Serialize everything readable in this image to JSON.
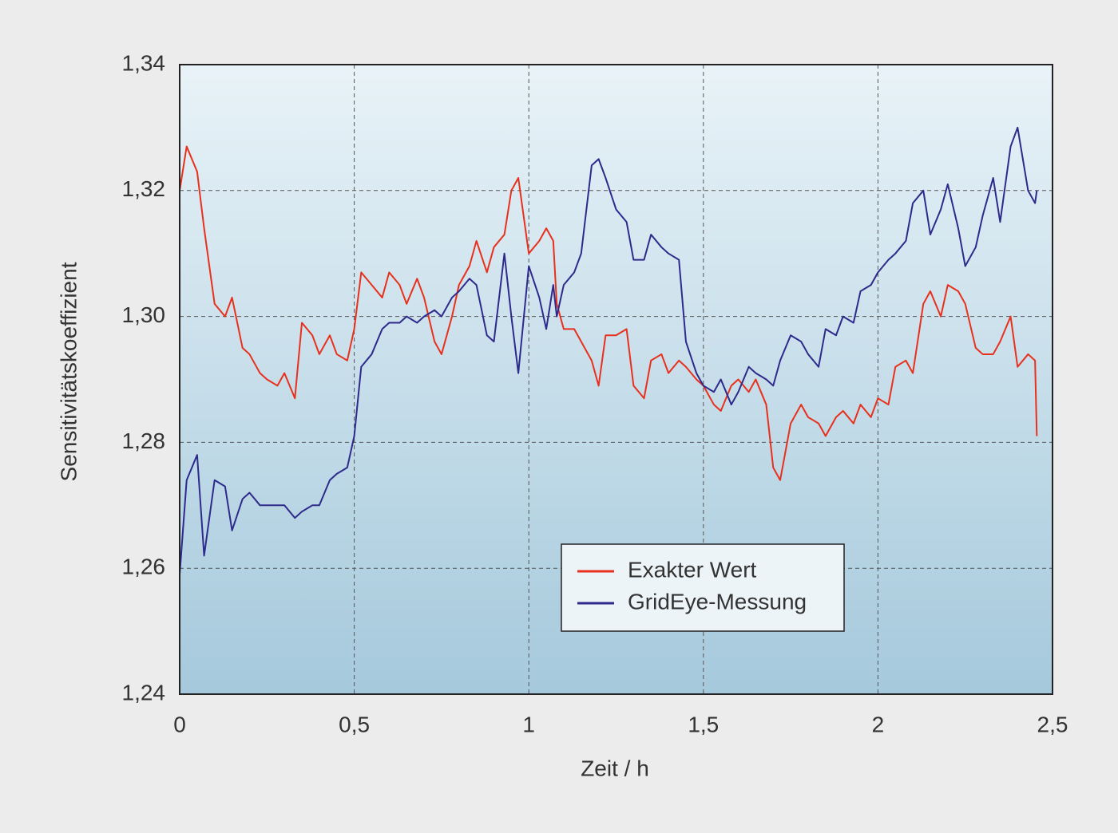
{
  "chart_data": {
    "type": "line",
    "xlabel": "Zeit / h",
    "ylabel": "Sensitivitätskoeffizient",
    "x": [
      0,
      0.02,
      0.05,
      0.07,
      0.1,
      0.13,
      0.15,
      0.18,
      0.2,
      0.23,
      0.25,
      0.28,
      0.3,
      0.33,
      0.35,
      0.38,
      0.4,
      0.43,
      0.45,
      0.48,
      0.5,
      0.52,
      0.55,
      0.58,
      0.6,
      0.63,
      0.65,
      0.68,
      0.7,
      0.73,
      0.75,
      0.78,
      0.8,
      0.83,
      0.85,
      0.88,
      0.9,
      0.93,
      0.95,
      0.97,
      1.0,
      1.03,
      1.05,
      1.07,
      1.08,
      1.1,
      1.13,
      1.15,
      1.18,
      1.2,
      1.22,
      1.25,
      1.28,
      1.3,
      1.33,
      1.35,
      1.38,
      1.4,
      1.43,
      1.45,
      1.48,
      1.5,
      1.53,
      1.55,
      1.58,
      1.6,
      1.63,
      1.65,
      1.68,
      1.7,
      1.72,
      1.75,
      1.78,
      1.8,
      1.83,
      1.85,
      1.88,
      1.9,
      1.93,
      1.95,
      1.98,
      2.0,
      2.03,
      2.05,
      2.08,
      2.1,
      2.13,
      2.15,
      2.18,
      2.2,
      2.23,
      2.25,
      2.28,
      2.3,
      2.33,
      2.35,
      2.38,
      2.4,
      2.43,
      2.45,
      2.455
    ],
    "series": [
      {
        "name": "Exakter Wert",
        "color": "#e8301c",
        "values": [
          1.32,
          1.327,
          1.323,
          1.314,
          1.302,
          1.3,
          1.303,
          1.295,
          1.294,
          1.291,
          1.29,
          1.289,
          1.291,
          1.287,
          1.299,
          1.297,
          1.294,
          1.297,
          1.294,
          1.293,
          1.298,
          1.307,
          1.305,
          1.303,
          1.307,
          1.305,
          1.302,
          1.306,
          1.303,
          1.296,
          1.294,
          1.3,
          1.305,
          1.308,
          1.312,
          1.307,
          1.311,
          1.313,
          1.32,
          1.322,
          1.31,
          1.312,
          1.314,
          1.312,
          1.302,
          1.298,
          1.298,
          1.296,
          1.293,
          1.289,
          1.297,
          1.297,
          1.298,
          1.289,
          1.287,
          1.293,
          1.294,
          1.291,
          1.293,
          1.292,
          1.29,
          1.289,
          1.286,
          1.285,
          1.289,
          1.29,
          1.288,
          1.29,
          1.286,
          1.276,
          1.274,
          1.283,
          1.286,
          1.284,
          1.283,
          1.281,
          1.284,
          1.285,
          1.283,
          1.286,
          1.284,
          1.287,
          1.286,
          1.292,
          1.293,
          1.291,
          1.302,
          1.304,
          1.3,
          1.305,
          1.304,
          1.302,
          1.295,
          1.294,
          1.294,
          1.296,
          1.3,
          1.292,
          1.294,
          1.293,
          1.281
        ]
      },
      {
        "name": "GridEye-Messung",
        "color": "#2e2a8c",
        "values": [
          1.259,
          1.274,
          1.278,
          1.262,
          1.274,
          1.273,
          1.266,
          1.271,
          1.272,
          1.27,
          1.27,
          1.27,
          1.27,
          1.268,
          1.269,
          1.27,
          1.27,
          1.274,
          1.275,
          1.276,
          1.281,
          1.292,
          1.294,
          1.298,
          1.299,
          1.299,
          1.3,
          1.299,
          1.3,
          1.301,
          1.3,
          1.303,
          1.304,
          1.306,
          1.305,
          1.297,
          1.296,
          1.31,
          1.3,
          1.291,
          1.308,
          1.303,
          1.298,
          1.305,
          1.3,
          1.305,
          1.307,
          1.31,
          1.324,
          1.325,
          1.322,
          1.317,
          1.315,
          1.309,
          1.309,
          1.313,
          1.311,
          1.31,
          1.309,
          1.296,
          1.291,
          1.289,
          1.288,
          1.29,
          1.286,
          1.288,
          1.292,
          1.291,
          1.29,
          1.289,
          1.293,
          1.297,
          1.296,
          1.294,
          1.292,
          1.298,
          1.297,
          1.3,
          1.299,
          1.304,
          1.305,
          1.307,
          1.309,
          1.31,
          1.312,
          1.318,
          1.32,
          1.313,
          1.317,
          1.321,
          1.314,
          1.308,
          1.311,
          1.316,
          1.322,
          1.315,
          1.327,
          1.33,
          1.32,
          1.318,
          1.32
        ]
      }
    ],
    "xlim": [
      0,
      2.5
    ],
    "xticks": [
      0,
      {
        "value": 0.5,
        "label": "0,5"
      },
      1,
      {
        "value": 1.5,
        "label": "1,5"
      },
      2,
      {
        "value": 2.5,
        "label": "2,5"
      }
    ],
    "ylim": [
      1.24,
      1.34
    ],
    "yticks": [
      {
        "value": 1.24,
        "label": "1,24"
      },
      {
        "value": 1.26,
        "label": "1,26"
      },
      {
        "value": 1.28,
        "label": "1,28"
      },
      {
        "value": 1.3,
        "label": "1,30"
      },
      {
        "value": 1.32,
        "label": "1,32"
      },
      {
        "value": 1.34,
        "label": "1,34"
      }
    ],
    "grid": true
  }
}
